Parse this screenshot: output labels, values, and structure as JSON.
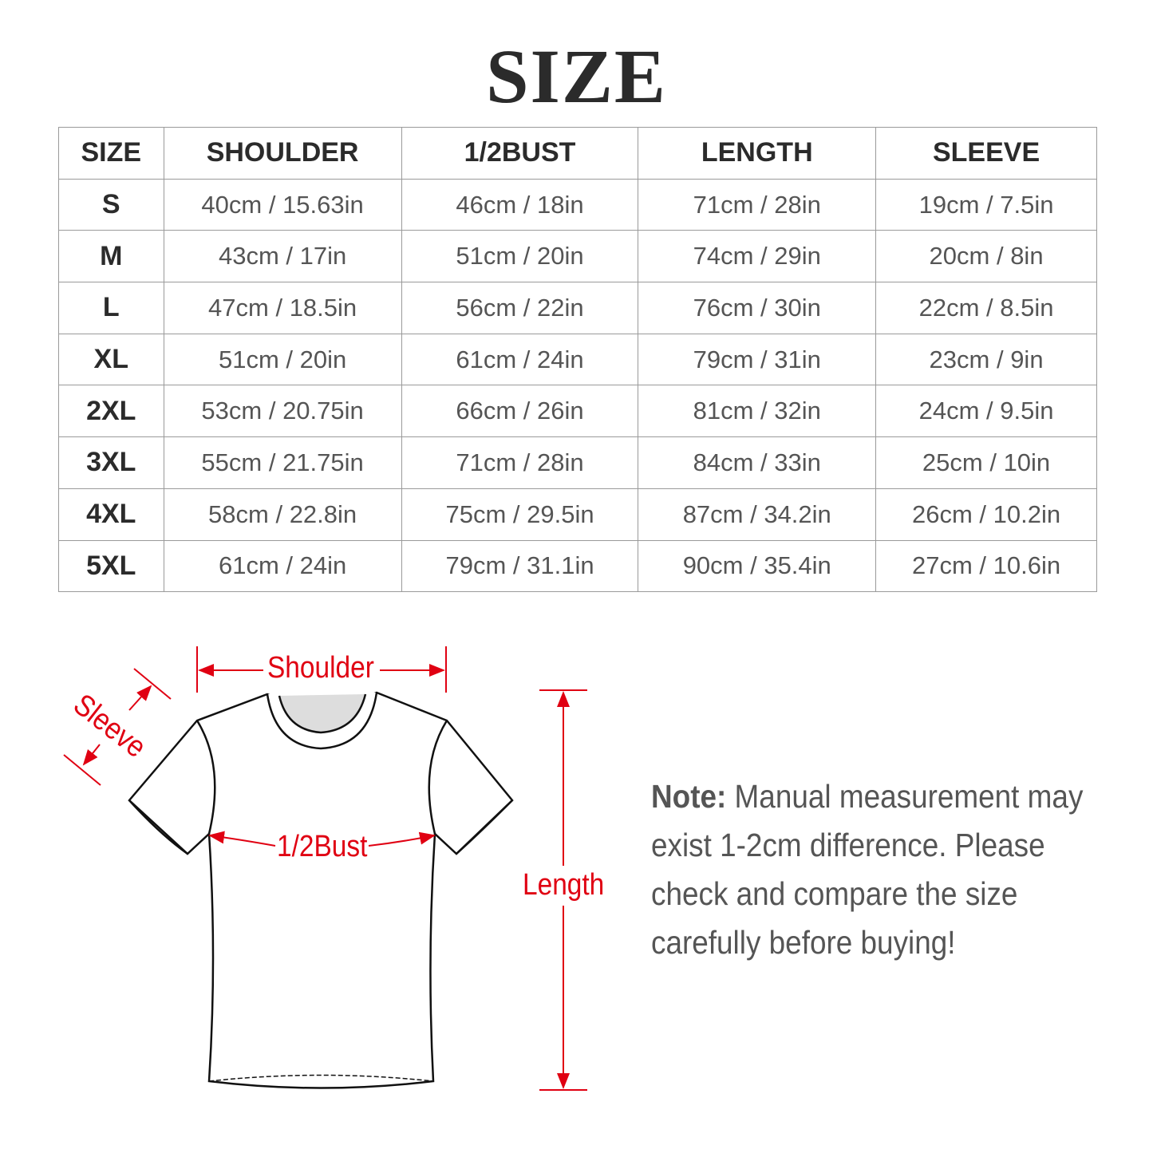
{
  "title": "SIZE",
  "table": {
    "headers": [
      "SIZE",
      "SHOULDER",
      "1/2BUST",
      "LENGTH",
      "SLEEVE"
    ],
    "rows": [
      [
        "S",
        "40cm / 15.63in",
        "46cm / 18in",
        "71cm / 28in",
        "19cm / 7.5in"
      ],
      [
        "M",
        "43cm / 17in",
        "51cm / 20in",
        "74cm / 29in",
        "20cm / 8in"
      ],
      [
        "L",
        "47cm / 18.5in",
        "56cm / 22in",
        "76cm / 30in",
        "22cm / 8.5in"
      ],
      [
        "XL",
        "51cm / 20in",
        "61cm / 24in",
        "79cm / 31in",
        "23cm / 9in"
      ],
      [
        "2XL",
        "53cm / 20.75in",
        "66cm / 26in",
        "81cm / 32in",
        "24cm / 9.5in"
      ],
      [
        "3XL",
        "55cm / 21.75in",
        "71cm / 28in",
        "84cm / 33in",
        "25cm / 10in"
      ],
      [
        "4XL",
        "58cm / 22.8in",
        "75cm / 29.5in",
        "87cm / 34.2in",
        "26cm / 10.2in"
      ],
      [
        "5XL",
        "61cm / 24in",
        "79cm / 31.1in",
        "90cm / 35.4in",
        "27cm / 10.6in"
      ]
    ]
  },
  "diagram": {
    "shoulder_label": "Shoulder",
    "sleeve_label": "Sleeve",
    "bust_label": "1/2Bust",
    "length_label": "Length",
    "accent_color": "#e00012"
  },
  "note": {
    "label": "Note:",
    "lines": [
      "Manual measurement may",
      "exist 1-2cm difference. Please",
      "check and compare the size",
      "carefully before buying!"
    ]
  }
}
